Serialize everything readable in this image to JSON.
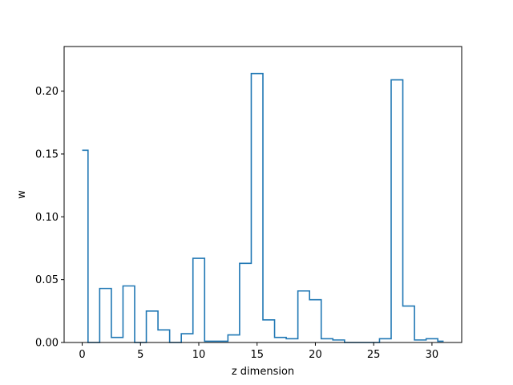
{
  "chart_data": {
    "type": "line",
    "drawstyle": "steps-mid",
    "xlabel": "z dimension",
    "ylabel": "w",
    "xlim": [
      -1.55,
      32.55
    ],
    "ylim": [
      0,
      0.2355
    ],
    "xticks": [
      0,
      5,
      10,
      15,
      20,
      25,
      30
    ],
    "xtick_labels": [
      "0",
      "5",
      "10",
      "15",
      "20",
      "25",
      "30"
    ],
    "yticks": [
      0,
      0.05,
      0.1,
      0.15,
      0.2
    ],
    "ytick_labels": [
      "0.00",
      "0.05",
      "0.10",
      "0.15",
      "0.20"
    ],
    "grid": false,
    "series": [
      {
        "color": "#1f77b4",
        "x": [
          0,
          1,
          2,
          3,
          4,
          5,
          6,
          7,
          8,
          9,
          10,
          11,
          12,
          13,
          14,
          15,
          16,
          17,
          18,
          19,
          20,
          21,
          22,
          23,
          24,
          25,
          26,
          27,
          28,
          29,
          30,
          31
        ],
        "values": [
          0.153,
          0.0,
          0.043,
          0.004,
          0.045,
          0.0,
          0.025,
          0.01,
          0.0,
          0.007,
          0.067,
          0.001,
          0.001,
          0.006,
          0.063,
          0.214,
          0.018,
          0.004,
          0.003,
          0.041,
          0.034,
          0.003,
          0.002,
          0.0,
          0.0,
          0.0,
          0.003,
          0.209,
          0.029,
          0.002,
          0.003,
          0.001
        ]
      }
    ]
  }
}
